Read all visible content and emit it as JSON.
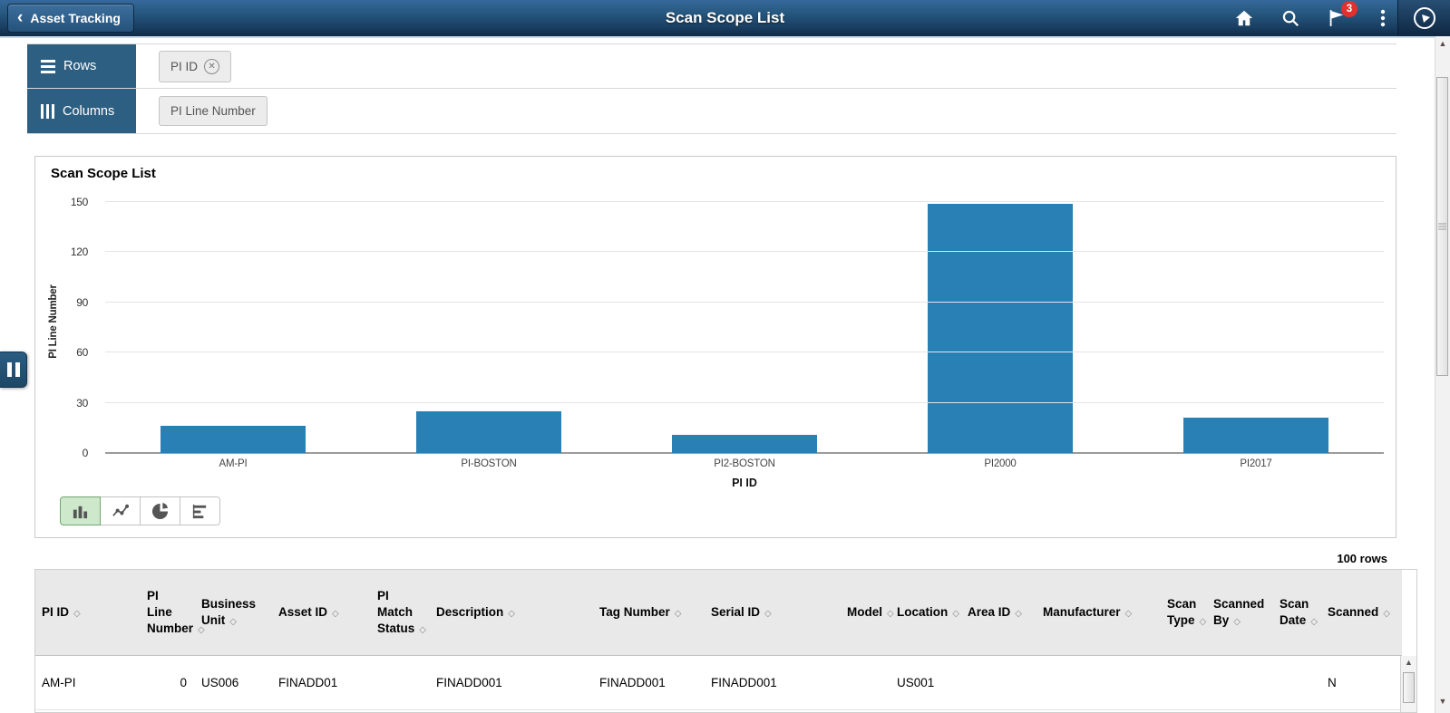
{
  "header": {
    "back_label": "Asset Tracking",
    "title": "Scan Scope List",
    "notification_badge": "3"
  },
  "pivot": {
    "rows_label": "Rows",
    "rows_chip": "PI ID",
    "columns_label": "Columns",
    "columns_chip": "PI Line Number"
  },
  "chart_data": {
    "type": "bar",
    "title": "Scan Scope List",
    "categories": [
      "AM-PI",
      "PI-BOSTON",
      "PI2-BOSTON",
      "PI2000",
      "PI2017"
    ],
    "values": [
      16,
      25,
      11,
      149,
      21
    ],
    "xlabel": "PI ID",
    "ylabel": "PI Line Number",
    "ylim": [
      0,
      150
    ],
    "yticks": [
      0,
      30,
      60,
      90,
      120,
      150
    ],
    "grid": true,
    "legend": false
  },
  "chart_toolbar": {
    "types": [
      "vertical-bar-chart",
      "line-chart",
      "pie-chart",
      "horizontal-bar-chart"
    ],
    "selected": "vertical-bar-chart"
  },
  "table": {
    "rows_count_label": "100 rows",
    "sort_icon": "◇",
    "columns": [
      "PI ID",
      "PI Line Number",
      "Business Unit",
      "Asset ID",
      "PI Match Status",
      "Description",
      "Tag Number",
      "Serial ID",
      "Model",
      "Location",
      "Area ID",
      "Manufacturer",
      "Scan Type",
      "Scanned By",
      "Scan Date",
      "Scanned"
    ],
    "rows": [
      [
        "AM-PI",
        "0",
        "US006",
        "FINADD01",
        "",
        "FINADD001",
        "FINADD001",
        "FINADD001",
        "",
        "US001",
        "",
        "",
        "",
        "",
        "",
        "N"
      ]
    ]
  },
  "colors": {
    "accent_blue": "#2d5f82",
    "bar": "#2980b5",
    "badge_red": "#e0312f",
    "selected_chart_button_bg": "#cde8cb"
  }
}
